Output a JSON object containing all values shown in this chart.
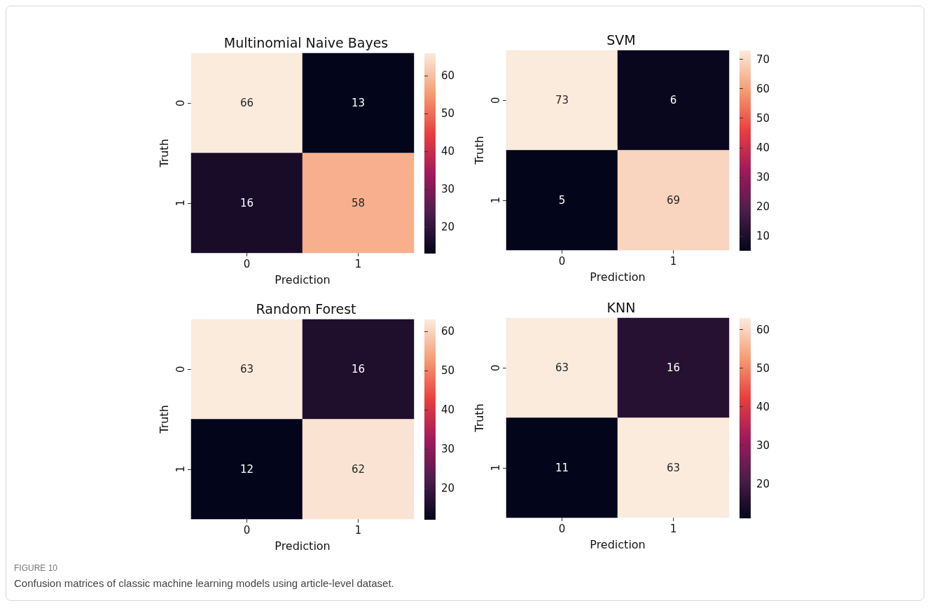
{
  "chart_data": [
    {
      "type": "heatmap",
      "title": "Multinomial Naive Bayes",
      "xlabel": "Prediction",
      "ylabel": "Truth",
      "categories": [
        "0",
        "1"
      ],
      "y_categories": [
        "0",
        "1"
      ],
      "cells": [
        [
          66,
          13
        ],
        [
          16,
          58
        ]
      ],
      "clim": [
        13,
        66
      ],
      "cticks": [
        20,
        30,
        40,
        50,
        60
      ],
      "data_labels": true,
      "annotations": [
        "FIGURE 10",
        "Confusion matrices of classic machine learning models using article-level dataset."
      ]
    },
    {
      "type": "heatmap",
      "title": "SVM",
      "xlabel": "Prediction",
      "ylabel": "Truth",
      "categories": [
        "0",
        "1"
      ],
      "y_categories": [
        "0",
        "1"
      ],
      "cells": [
        [
          73,
          6
        ],
        [
          5,
          69
        ]
      ],
      "clim": [
        5,
        73
      ],
      "cticks": [
        10,
        20,
        30,
        40,
        50,
        60,
        70
      ],
      "data_labels": true
    },
    {
      "type": "heatmap",
      "title": "Random Forest",
      "xlabel": "Prediction",
      "ylabel": "Truth",
      "categories": [
        "0",
        "1"
      ],
      "y_categories": [
        "0",
        "1"
      ],
      "cells": [
        [
          63,
          16
        ],
        [
          12,
          62
        ]
      ],
      "clim": [
        12,
        63
      ],
      "cticks": [
        20,
        30,
        40,
        50,
        60
      ],
      "data_labels": true
    },
    {
      "type": "heatmap",
      "title": "KNN",
      "xlabel": "Prediction",
      "ylabel": "Truth",
      "categories": [
        "0",
        "1"
      ],
      "y_categories": [
        "0",
        "1"
      ],
      "cells": [
        [
          63,
          16
        ],
        [
          11,
          63
        ]
      ],
      "clim": [
        11,
        63
      ],
      "cticks": [
        20,
        30,
        40,
        50,
        60
      ],
      "data_labels": true
    }
  ]
}
